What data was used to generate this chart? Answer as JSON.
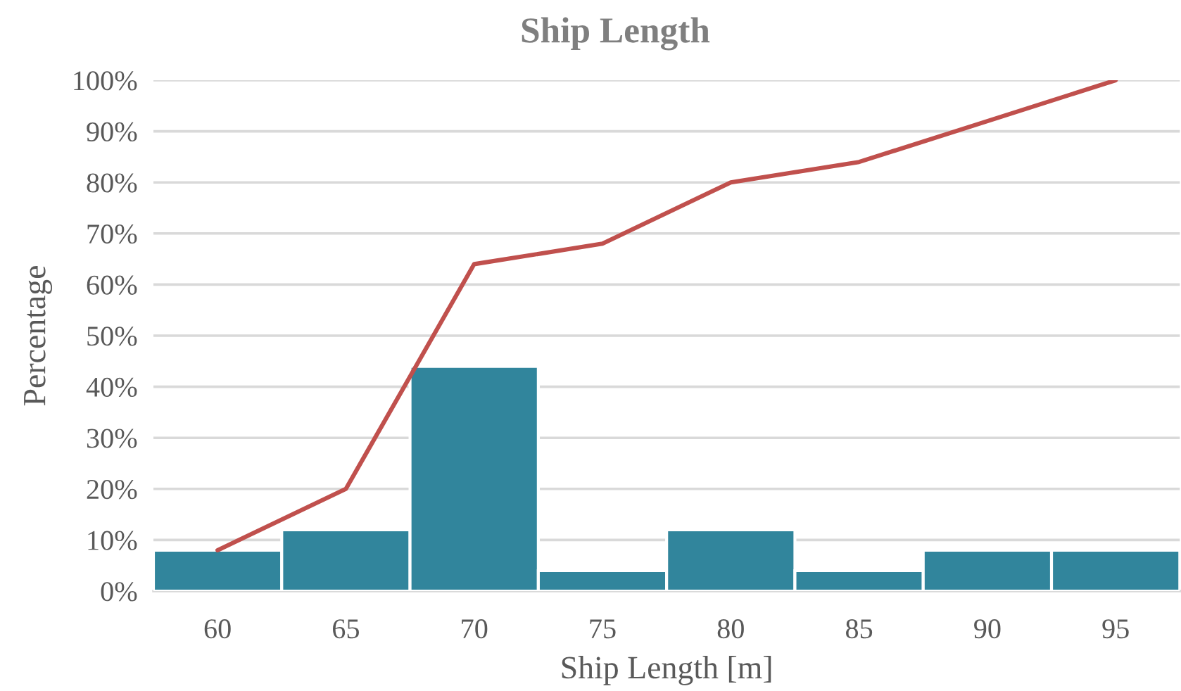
{
  "chart_data": {
    "type": "bar",
    "title": "Ship Length",
    "xlabel": "Ship Length [m]",
    "ylabel": "Percentage",
    "categories": [
      "60",
      "65",
      "70",
      "75",
      "80",
      "85",
      "90",
      "95"
    ],
    "series": [
      {
        "color": "#31859c",
        "values": [
          8,
          12,
          44,
          4,
          12,
          4,
          8,
          8
        ]
      },
      {
        "type": "line",
        "color": "#c0504d",
        "values": [
          8,
          20,
          64,
          68,
          80,
          84,
          92,
          100
        ]
      }
    ],
    "ylim": [
      0,
      100
    ],
    "yticks": [
      {
        "value": 0,
        "label": "0%"
      },
      {
        "value": 10,
        "label": "10%"
      },
      {
        "value": 20,
        "label": "20%"
      },
      {
        "value": 30,
        "label": "30%"
      },
      {
        "value": 40,
        "label": "40%"
      },
      {
        "value": 50,
        "label": "50%"
      },
      {
        "value": 60,
        "label": "60%"
      },
      {
        "value": 70,
        "label": "70%"
      },
      {
        "value": 80,
        "label": "80%"
      },
      {
        "value": 90,
        "label": "90%"
      },
      {
        "value": 100,
        "label": "100%"
      }
    ],
    "grid": "y"
  }
}
